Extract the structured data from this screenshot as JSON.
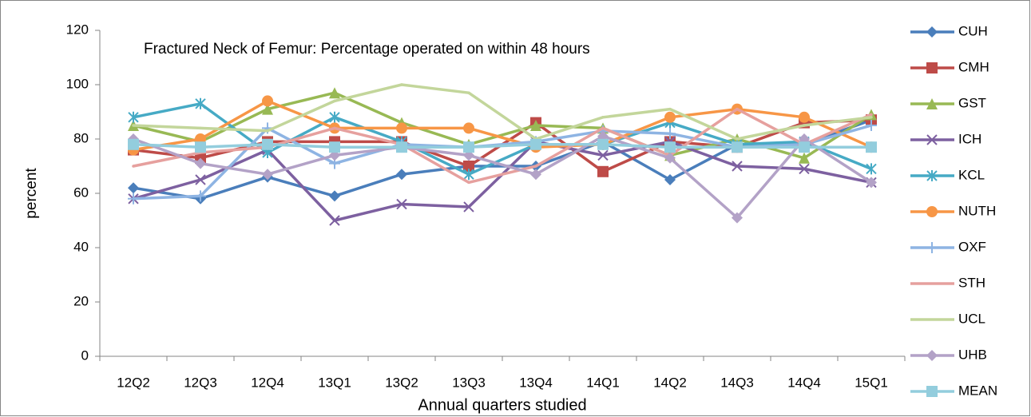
{
  "chart_data": {
    "type": "line",
    "title": "Fractured Neck of Femur: Percentage operated on within 48 hours",
    "x_label": "Annual quarters studied",
    "y_label": "percent",
    "categories": [
      "12Q2",
      "12Q3",
      "12Q4",
      "13Q1",
      "13Q2",
      "13Q3",
      "13Q4",
      "14Q1",
      "14Q2",
      "14Q3",
      "14Q4",
      "15Q1"
    ],
    "ylim": [
      0,
      120
    ],
    "yticks": [
      0,
      20,
      40,
      60,
      80,
      100,
      120
    ],
    "grid": false,
    "legend": "right",
    "series": [
      {
        "name": "CUH",
        "color": "#4a7ebb",
        "marker": "diamond",
        "values": [
          62,
          58,
          66,
          59,
          67,
          70,
          70,
          79,
          65,
          78,
          78,
          87
        ]
      },
      {
        "name": "CMH",
        "color": "#be4b48",
        "marker": "square",
        "values": [
          76,
          73,
          79,
          79,
          79,
          70,
          86,
          68,
          79,
          77,
          86,
          87
        ]
      },
      {
        "name": "GST",
        "color": "#98b954",
        "marker": "triangle",
        "values": [
          85,
          79,
          91,
          97,
          86,
          78,
          85,
          84,
          74,
          80,
          73,
          89
        ]
      },
      {
        "name": "ICH",
        "color": "#7d60a0",
        "marker": "x",
        "values": [
          58,
          65,
          76,
          50,
          56,
          55,
          79,
          74,
          79,
          70,
          69,
          64
        ]
      },
      {
        "name": "KCL",
        "color": "#46aac5",
        "marker": "star",
        "values": [
          88,
          93,
          75,
          88,
          79,
          67,
          78,
          78,
          86,
          78,
          79,
          69
        ]
      },
      {
        "name": "NUTH",
        "color": "#f79646",
        "marker": "circle",
        "values": [
          76,
          80,
          94,
          84,
          84,
          84,
          77,
          78,
          88,
          91,
          88,
          77
        ]
      },
      {
        "name": "OXF",
        "color": "#8eb4e3",
        "marker": "plus",
        "values": [
          58,
          59,
          84,
          71,
          78,
          77,
          79,
          83,
          82,
          77,
          78,
          85
        ]
      },
      {
        "name": "STH",
        "color": "#e6a09e",
        "marker": "none",
        "values": [
          70,
          75,
          77,
          84,
          78,
          64,
          70,
          84,
          74,
          91,
          78,
          89
        ]
      },
      {
        "name": "UCL",
        "color": "#c3d69b",
        "marker": "none",
        "values": [
          85,
          84,
          83,
          94,
          100,
          97,
          80,
          88,
          91,
          80,
          85,
          88
        ]
      },
      {
        "name": "UHB",
        "color": "#b3a2c7",
        "marker": "diamond",
        "values": [
          80,
          71,
          67,
          74,
          77,
          74,
          67,
          81,
          73,
          51,
          80,
          64
        ]
      },
      {
        "name": "MEAN",
        "color": "#93cddd",
        "marker": "square",
        "values": [
          78,
          77,
          78,
          77,
          77,
          77,
          78,
          78,
          77,
          77,
          77,
          77
        ]
      }
    ]
  }
}
